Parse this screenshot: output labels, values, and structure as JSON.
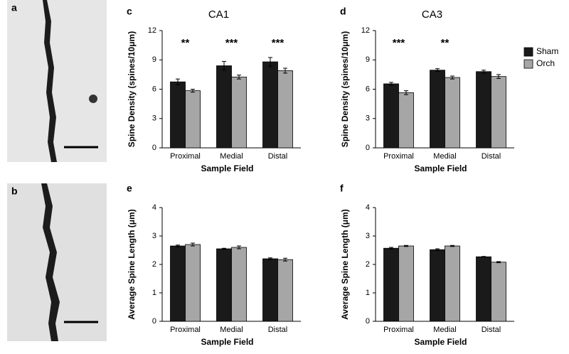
{
  "micrographs": [
    {
      "label": "a"
    },
    {
      "label": "b"
    }
  ],
  "chart_data": [
    {
      "type": "bar",
      "panel": "c",
      "title": "CA1",
      "y_label": "Spine Density (spines/10μm)",
      "x_label": "Sample Field",
      "categories": [
        "Proximal",
        "Medial",
        "Distal"
      ],
      "series": [
        {
          "name": "Sham",
          "color": "#1a1a1a",
          "values": [
            6.75,
            8.4,
            8.8
          ],
          "errors": [
            0.3,
            0.45,
            0.45
          ]
        },
        {
          "name": "Orch",
          "color": "#a6a6a6",
          "values": [
            5.85,
            7.25,
            7.9
          ],
          "errors": [
            0.15,
            0.2,
            0.25
          ]
        }
      ],
      "annotations": [
        {
          "x": "Proximal",
          "text": "**"
        },
        {
          "x": "Medial",
          "text": "***"
        },
        {
          "x": "Distal",
          "text": "***"
        }
      ],
      "ylim": [
        0,
        12
      ],
      "yticks": [
        0,
        3,
        6,
        9,
        12
      ],
      "legend": false
    },
    {
      "type": "bar",
      "panel": "d",
      "title": "CA3",
      "y_label": "Spine Density (spines/10μm)",
      "x_label": "Sample Field",
      "categories": [
        "Proximal",
        "Medial",
        "Distal"
      ],
      "series": [
        {
          "name": "Sham",
          "color": "#1a1a1a",
          "values": [
            6.55,
            7.95,
            7.8
          ],
          "errors": [
            0.15,
            0.15,
            0.15
          ]
        },
        {
          "name": "Orch",
          "color": "#a6a6a6",
          "values": [
            5.65,
            7.2,
            7.3
          ],
          "errors": [
            0.2,
            0.15,
            0.2
          ]
        }
      ],
      "annotations": [
        {
          "x": "Proximal",
          "text": "***"
        },
        {
          "x": "Medial",
          "text": "**"
        }
      ],
      "ylim": [
        0,
        12
      ],
      "yticks": [
        0,
        3,
        6,
        9,
        12
      ],
      "legend": "upper right"
    },
    {
      "type": "bar",
      "panel": "e",
      "y_label": "Average Spine Length (μm)",
      "x_label": "Sample Field",
      "categories": [
        "Proximal",
        "Medial",
        "Distal"
      ],
      "series": [
        {
          "name": "Sham",
          "color": "#1a1a1a",
          "values": [
            2.65,
            2.55,
            2.2
          ],
          "errors": [
            0.03,
            0.02,
            0.03
          ]
        },
        {
          "name": "Orch",
          "color": "#a6a6a6",
          "values": [
            2.7,
            2.6,
            2.17
          ],
          "errors": [
            0.05,
            0.05,
            0.05
          ]
        }
      ],
      "ylim": [
        0,
        4
      ],
      "yticks": [
        0,
        1,
        2,
        3,
        4
      ],
      "legend": false
    },
    {
      "type": "bar",
      "panel": "f",
      "y_label": "Average Spine Length (μm)",
      "x_label": "Sample Field",
      "categories": [
        "Proximal",
        "Medial",
        "Distal"
      ],
      "series": [
        {
          "name": "Sham",
          "color": "#1a1a1a",
          "values": [
            2.57,
            2.52,
            2.27
          ],
          "errors": [
            0.03,
            0.03,
            0.01
          ]
        },
        {
          "name": "Orch",
          "color": "#a6a6a6",
          "values": [
            2.65,
            2.65,
            2.08
          ],
          "errors": [
            0.02,
            0.02,
            0.02
          ]
        }
      ],
      "ylim": [
        0,
        4
      ],
      "yticks": [
        0,
        1,
        2,
        3,
        4
      ],
      "legend": false
    }
  ]
}
